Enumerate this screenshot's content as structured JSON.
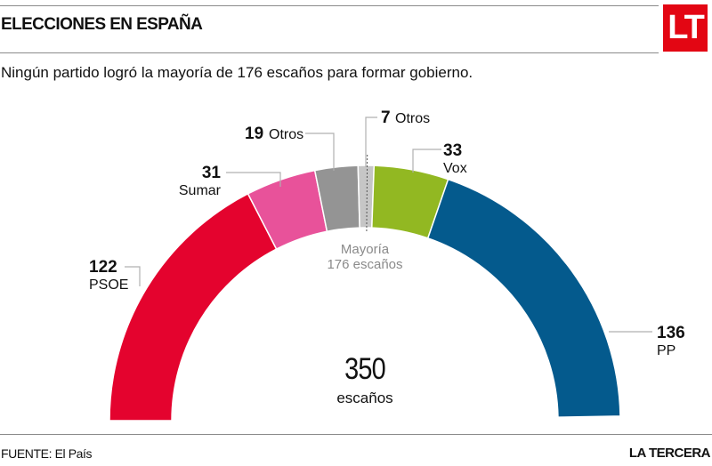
{
  "header": {
    "title": "ELECCIONES EN ESPAÑA",
    "logo": "LT",
    "subtitle": "Ningún partido logró la mayoría de 176 escaños para formar gobierno."
  },
  "chart_data": {
    "type": "pie",
    "variant": "parliament-half-donut",
    "title": "ELECCIONES EN ESPAÑA",
    "subtitle": "Ningún partido logró la mayoría de 176 escaños para formar gobierno.",
    "total": 350,
    "total_label": "escaños",
    "majority": 176,
    "majority_label": [
      "Mayoría",
      "176 escaños"
    ],
    "series": [
      {
        "name": "PSOE",
        "value": 122,
        "color": "#e4032e"
      },
      {
        "name": "Sumar",
        "value": 31,
        "color": "#e8529a"
      },
      {
        "name": "Otros",
        "value": 19,
        "color": "#949494"
      },
      {
        "name": "Otros",
        "value": 7,
        "color": "#c6c6c6"
      },
      {
        "name": "Vox",
        "value": 33,
        "color": "#92b822"
      },
      {
        "name": "PP",
        "value": 136,
        "color": "#045a8d"
      }
    ]
  },
  "footer": {
    "source": "FUENTE: El País",
    "brand": "LA TERCERA"
  }
}
